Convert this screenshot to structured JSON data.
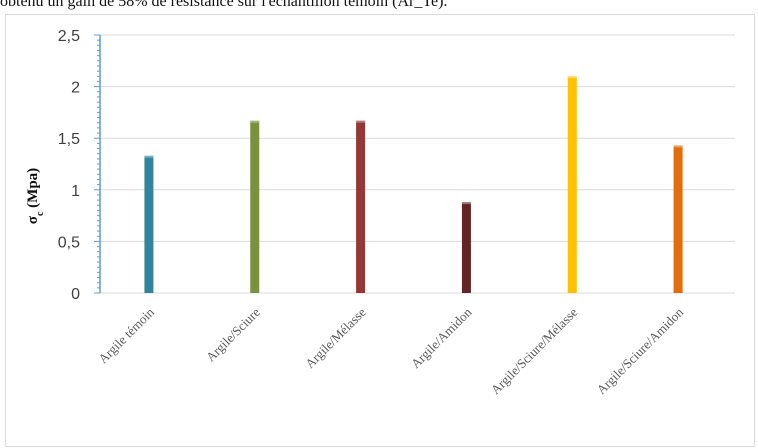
{
  "caption_fragment": "obtenu un gain de 58% de résistance sur l'échantillon témoin (Ar_Te).",
  "chart_data": {
    "type": "bar",
    "ylabel": "σc (Mpa)",
    "ylim": [
      0,
      2.5
    ],
    "yticks": [
      "0",
      "0,5",
      "1",
      "1,5",
      "2",
      "2,5"
    ],
    "ytick_values": [
      0,
      0.5,
      1,
      1.5,
      2,
      2.5
    ],
    "grid": true,
    "legend": "none",
    "categories": [
      "Argile témoin",
      "Argile/Sciure",
      "Argile/Mélasse",
      "Argile/Amidon",
      "Argile/Sciure/Mélasse",
      "Argile/Sciure/Amidon"
    ],
    "values": [
      1.33,
      1.67,
      1.67,
      0.88,
      2.1,
      1.43
    ],
    "colors": [
      "#31849b",
      "#77933c",
      "#953735",
      "#632523",
      "#ffc000",
      "#e46c0a"
    ]
  }
}
